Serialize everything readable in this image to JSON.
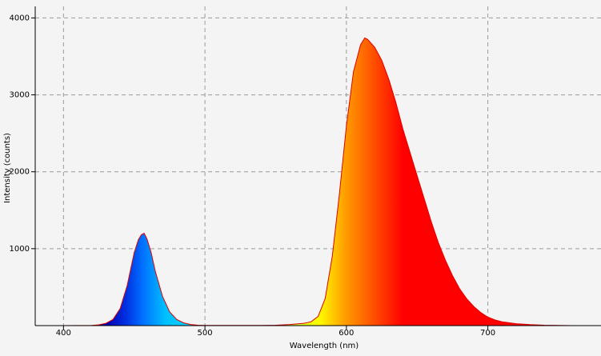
{
  "chart_data": {
    "type": "area",
    "x_label": "Wavelength (nm)",
    "y_label": "Intensity (counts)",
    "xlim": [
      380,
      780
    ],
    "ylim": [
      0,
      4150
    ],
    "xticks": [
      400,
      500,
      600,
      700
    ],
    "yticks": [
      1000,
      2000,
      3000,
      4000
    ],
    "grid": true,
    "color": "#e00000",
    "x": [
      380,
      400,
      420,
      425,
      430,
      435,
      440,
      445,
      450,
      453,
      455,
      457,
      459,
      462,
      465,
      470,
      475,
      480,
      485,
      490,
      495,
      500,
      520,
      540,
      550,
      560,
      570,
      575,
      580,
      585,
      590,
      595,
      600,
      605,
      610,
      613,
      615,
      620,
      625,
      630,
      635,
      640,
      645,
      650,
      655,
      660,
      665,
      670,
      675,
      680,
      685,
      690,
      695,
      700,
      705,
      710,
      720,
      730,
      740,
      750,
      760,
      780
    ],
    "values": [
      0,
      0,
      3,
      10,
      30,
      80,
      220,
      520,
      950,
      1120,
      1180,
      1200,
      1130,
      950,
      700,
      380,
      180,
      80,
      35,
      15,
      5,
      2,
      2,
      3,
      5,
      15,
      30,
      50,
      120,
      350,
      900,
      1700,
      2600,
      3300,
      3650,
      3740,
      3720,
      3620,
      3450,
      3200,
      2900,
      2550,
      2250,
      1950,
      1650,
      1350,
      1080,
      850,
      650,
      480,
      350,
      250,
      170,
      110,
      75,
      50,
      25,
      12,
      5,
      2,
      0,
      0
    ]
  }
}
